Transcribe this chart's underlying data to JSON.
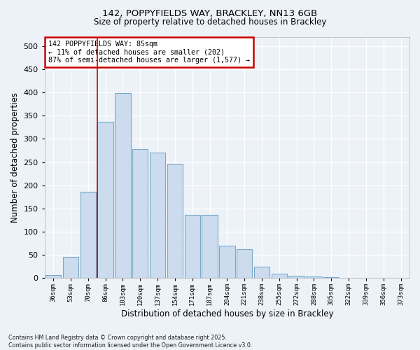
{
  "title1": "142, POPPYFIELDS WAY, BRACKLEY, NN13 6GB",
  "title2": "Size of property relative to detached houses in Brackley",
  "xlabel": "Distribution of detached houses by size in Brackley",
  "ylabel": "Number of detached properties",
  "bar_color": "#ccdcee",
  "bar_edge_color": "#7aaac8",
  "background_color": "#edf2f9",
  "grid_color": "#ffffff",
  "vline_x": 2,
  "vline_color": "#cc0000",
  "annotation_text": "142 POPPYFIELDS WAY: 85sqm\n← 11% of detached houses are smaller (202)\n87% of semi-detached houses are larger (1,577) →",
  "annotation_box_facecolor": "#ffffff",
  "annotation_box_edge": "#cc0000",
  "footer_text": "Contains HM Land Registry data © Crown copyright and database right 2025.\nContains public sector information licensed under the Open Government Licence v3.0.",
  "bin_labels": [
    "36sqm",
    "53sqm",
    "70sqm",
    "86sqm",
    "103sqm",
    "120sqm",
    "137sqm",
    "154sqm",
    "171sqm",
    "187sqm",
    "204sqm",
    "221sqm",
    "238sqm",
    "255sqm",
    "272sqm",
    "288sqm",
    "305sqm",
    "322sqm",
    "339sqm",
    "356sqm",
    "373sqm"
  ],
  "bar_heights": [
    7,
    46,
    186,
    337,
    398,
    278,
    270,
    246,
    136,
    136,
    70,
    62,
    25,
    10,
    5,
    3,
    2,
    1,
    1,
    1,
    1
  ],
  "ylim": [
    0,
    520
  ],
  "yticks": [
    0,
    50,
    100,
    150,
    200,
    250,
    300,
    350,
    400,
    450,
    500
  ],
  "num_bars": 21
}
